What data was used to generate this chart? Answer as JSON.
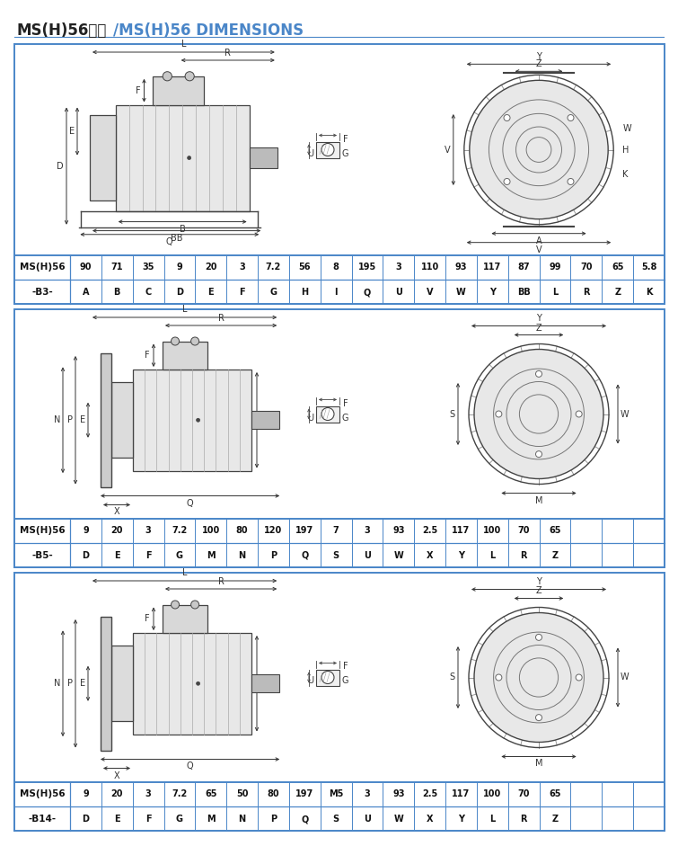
{
  "title_black": "MS(H)56尺寸",
  "title_blue": "/MS(H)56 DIMENSIONS",
  "title_fontsize": 12,
  "border_color": "#4a86c8",
  "bg_color": "#ffffff",
  "section1": {
    "label_top": "MS(H)56",
    "label_bot": "-B3-",
    "values": [
      "90",
      "71",
      "35",
      "9",
      "20",
      "3",
      "7.2",
      "56",
      "8",
      "195",
      "3",
      "110",
      "93",
      "117",
      "87",
      "99",
      "70",
      "65",
      "5.8"
    ],
    "params": [
      "A",
      "B",
      "C",
      "D",
      "E",
      "F",
      "G",
      "H",
      "I",
      "Q",
      "U",
      "V",
      "W",
      "Y",
      "BB",
      "L",
      "R",
      "Z",
      "K"
    ]
  },
  "section2": {
    "label_top": "MS(H)56",
    "label_bot": "-B5-",
    "values": [
      "9",
      "20",
      "3",
      "7.2",
      "100",
      "80",
      "120",
      "197",
      "7",
      "3",
      "93",
      "2.5",
      "117",
      "100",
      "70",
      "65",
      "",
      "",
      ""
    ],
    "params": [
      "D",
      "E",
      "F",
      "G",
      "M",
      "N",
      "P",
      "Q",
      "S",
      "U",
      "W",
      "X",
      "Y",
      "L",
      "R",
      "Z",
      "",
      "",
      ""
    ]
  },
  "section3": {
    "label_top": "MS(H)56",
    "label_bot": "-B14-",
    "values": [
      "9",
      "20",
      "3",
      "7.2",
      "65",
      "50",
      "80",
      "197",
      "M5",
      "3",
      "93",
      "2.5",
      "117",
      "100",
      "70",
      "65",
      "",
      "",
      ""
    ],
    "params": [
      "D",
      "E",
      "F",
      "G",
      "M",
      "N",
      "P",
      "Q",
      "S",
      "U",
      "W",
      "X",
      "Y",
      "L",
      "R",
      "Z",
      "",
      "",
      ""
    ]
  },
  "line_color": "#333333",
  "dim_color": "#444444",
  "body_fill": "#e8e8e8",
  "body_edge": "#555555",
  "fin_color": "#aaaaaa",
  "tb_fill": "#d0d0d0",
  "cap_fill": "#dddddd",
  "flange_fill": "#cccccc",
  "shaft_color": "#555555"
}
